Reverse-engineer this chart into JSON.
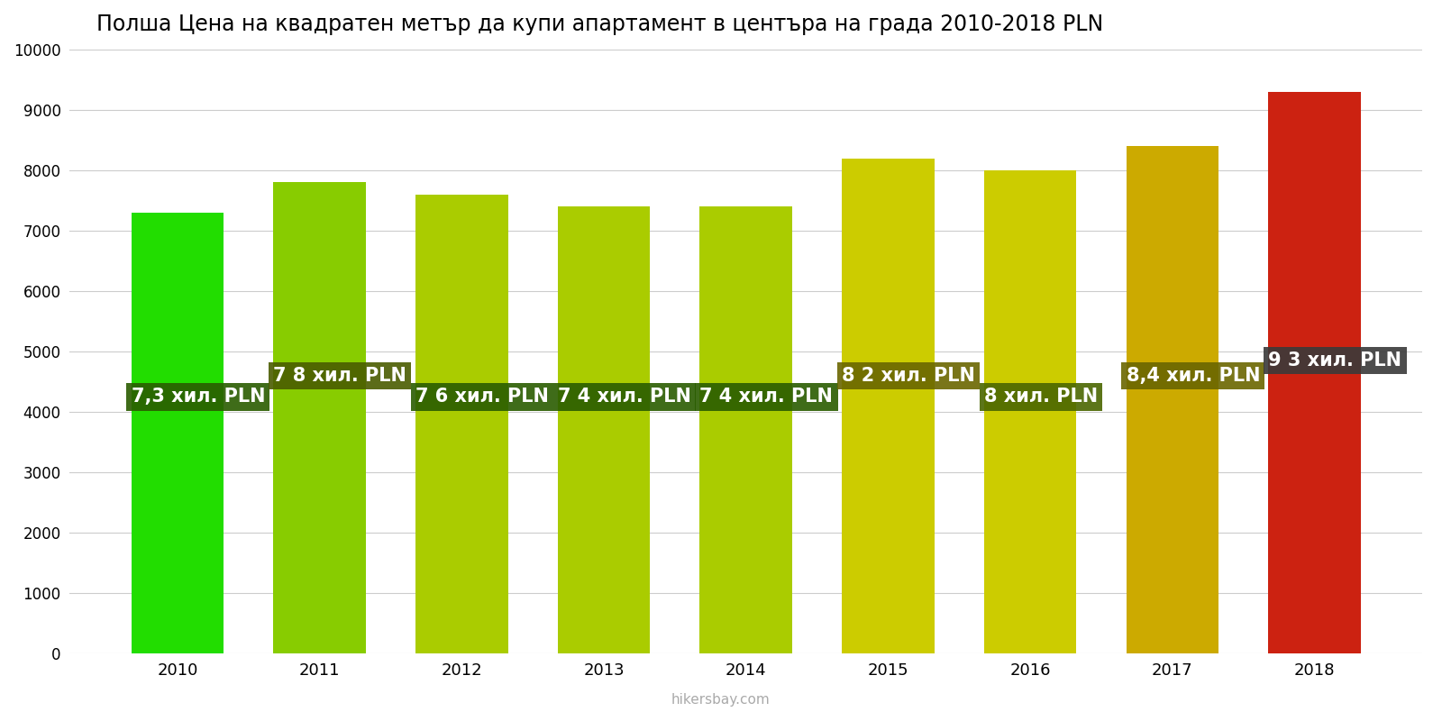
{
  "title": "Полша Цена на квадратен метър да купи апартамент в центъра на града 2010-2018 PLN",
  "years": [
    2010,
    2011,
    2012,
    2013,
    2014,
    2015,
    2016,
    2017,
    2018
  ],
  "values": [
    7300,
    7800,
    7600,
    7400,
    7400,
    8200,
    8000,
    8400,
    9300
  ],
  "labels": [
    "7,3 хил. PLN",
    "7 8 хил. PLN",
    "7 6 хил. PLN",
    "7 4 хил. PLN",
    "7 4 хил. PLN",
    "8 2 хил. PLN",
    "8 хил. PLN",
    "8,4 хил. PLN",
    "9 3 хил. PLN"
  ],
  "bar_colors": [
    "#22dd00",
    "#88cc00",
    "#aacc00",
    "#aacc00",
    "#aacc00",
    "#cccc00",
    "#cccc00",
    "#ccaa00",
    "#cc2211"
  ],
  "background_color": "#ffffff",
  "grid_color": "#cccccc",
  "ylim": [
    0,
    10000
  ],
  "yticks": [
    0,
    1000,
    2000,
    3000,
    4000,
    5000,
    6000,
    7000,
    8000,
    9000,
    10000
  ],
  "label_bg_colors": [
    "#2a5c00",
    "#4a5c00",
    "#2a5c00",
    "#2a5c00",
    "#2a5c00",
    "#6a6600",
    "#4a6600",
    "#6a6600",
    "#3a3a3a"
  ],
  "label_text_color": "#ffffff",
  "label_fontsize": 15,
  "title_fontsize": 17,
  "watermark": "hikersbay.com",
  "label_y_positions": [
    4250,
    4600,
    4250,
    4250,
    4250,
    4600,
    4250,
    4600,
    4850
  ],
  "label_va": [
    "center",
    "center",
    "center",
    "center",
    "center",
    "center",
    "center",
    "center",
    "center"
  ]
}
